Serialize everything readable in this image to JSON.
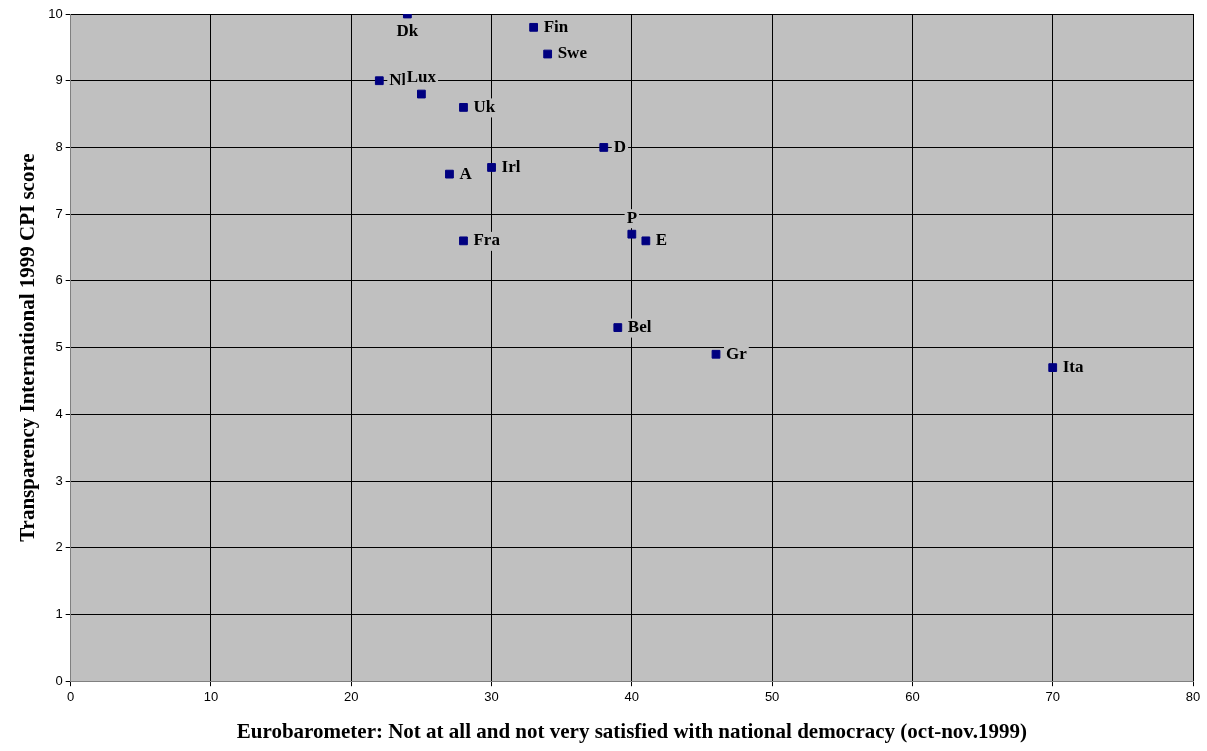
{
  "chart_data": {
    "type": "scatter",
    "xlabel": "Eurobarometer: Not at all and not very satisfied with national democracy (oct-nov.1999)",
    "ylabel": "Transparency International 1999 CPI score",
    "x": [
      24,
      33,
      34,
      22,
      25,
      28,
      38,
      27,
      30,
      28,
      40,
      41,
      39,
      46,
      70
    ],
    "values": [
      10,
      9.8,
      9.4,
      9.0,
      8.8,
      8.6,
      8.0,
      7.6,
      7.7,
      6.6,
      6.7,
      6.6,
      5.3,
      4.9,
      4.7
    ],
    "color": "#000080",
    "marker": "square",
    "grid": true,
    "legend": false,
    "xlim": [
      0,
      80
    ],
    "xticks": [
      0,
      10,
      20,
      30,
      40,
      50,
      60,
      70,
      80
    ],
    "ylim": [
      0,
      10
    ],
    "yticks": [
      0,
      1,
      2,
      3,
      4,
      5,
      6,
      7,
      8,
      9,
      10
    ],
    "annotations": [
      {
        "text": "Dk",
        "x": 24,
        "y": 10
      },
      {
        "text": "Fin",
        "x": 33,
        "y": 9.8
      },
      {
        "text": "Swe",
        "x": 34,
        "y": 9.4
      },
      {
        "text": "Nl",
        "x": 22,
        "y": 9.0
      },
      {
        "text": "Lux",
        "x": 25,
        "y": 8.8
      },
      {
        "text": "Uk",
        "x": 28,
        "y": 8.6
      },
      {
        "text": "D",
        "x": 38,
        "y": 8.0
      },
      {
        "text": "A",
        "x": 27,
        "y": 7.6
      },
      {
        "text": "Irl",
        "x": 30,
        "y": 7.7
      },
      {
        "text": "Fra",
        "x": 28,
        "y": 6.6
      },
      {
        "text": "P",
        "x": 40,
        "y": 6.7
      },
      {
        "text": "E",
        "x": 41,
        "y": 6.6
      },
      {
        "text": "Bel",
        "x": 39,
        "y": 5.3
      },
      {
        "text": "Gr",
        "x": 46,
        "y": 4.9
      },
      {
        "text": "Ita",
        "x": 70,
        "y": 4.7
      }
    ]
  }
}
